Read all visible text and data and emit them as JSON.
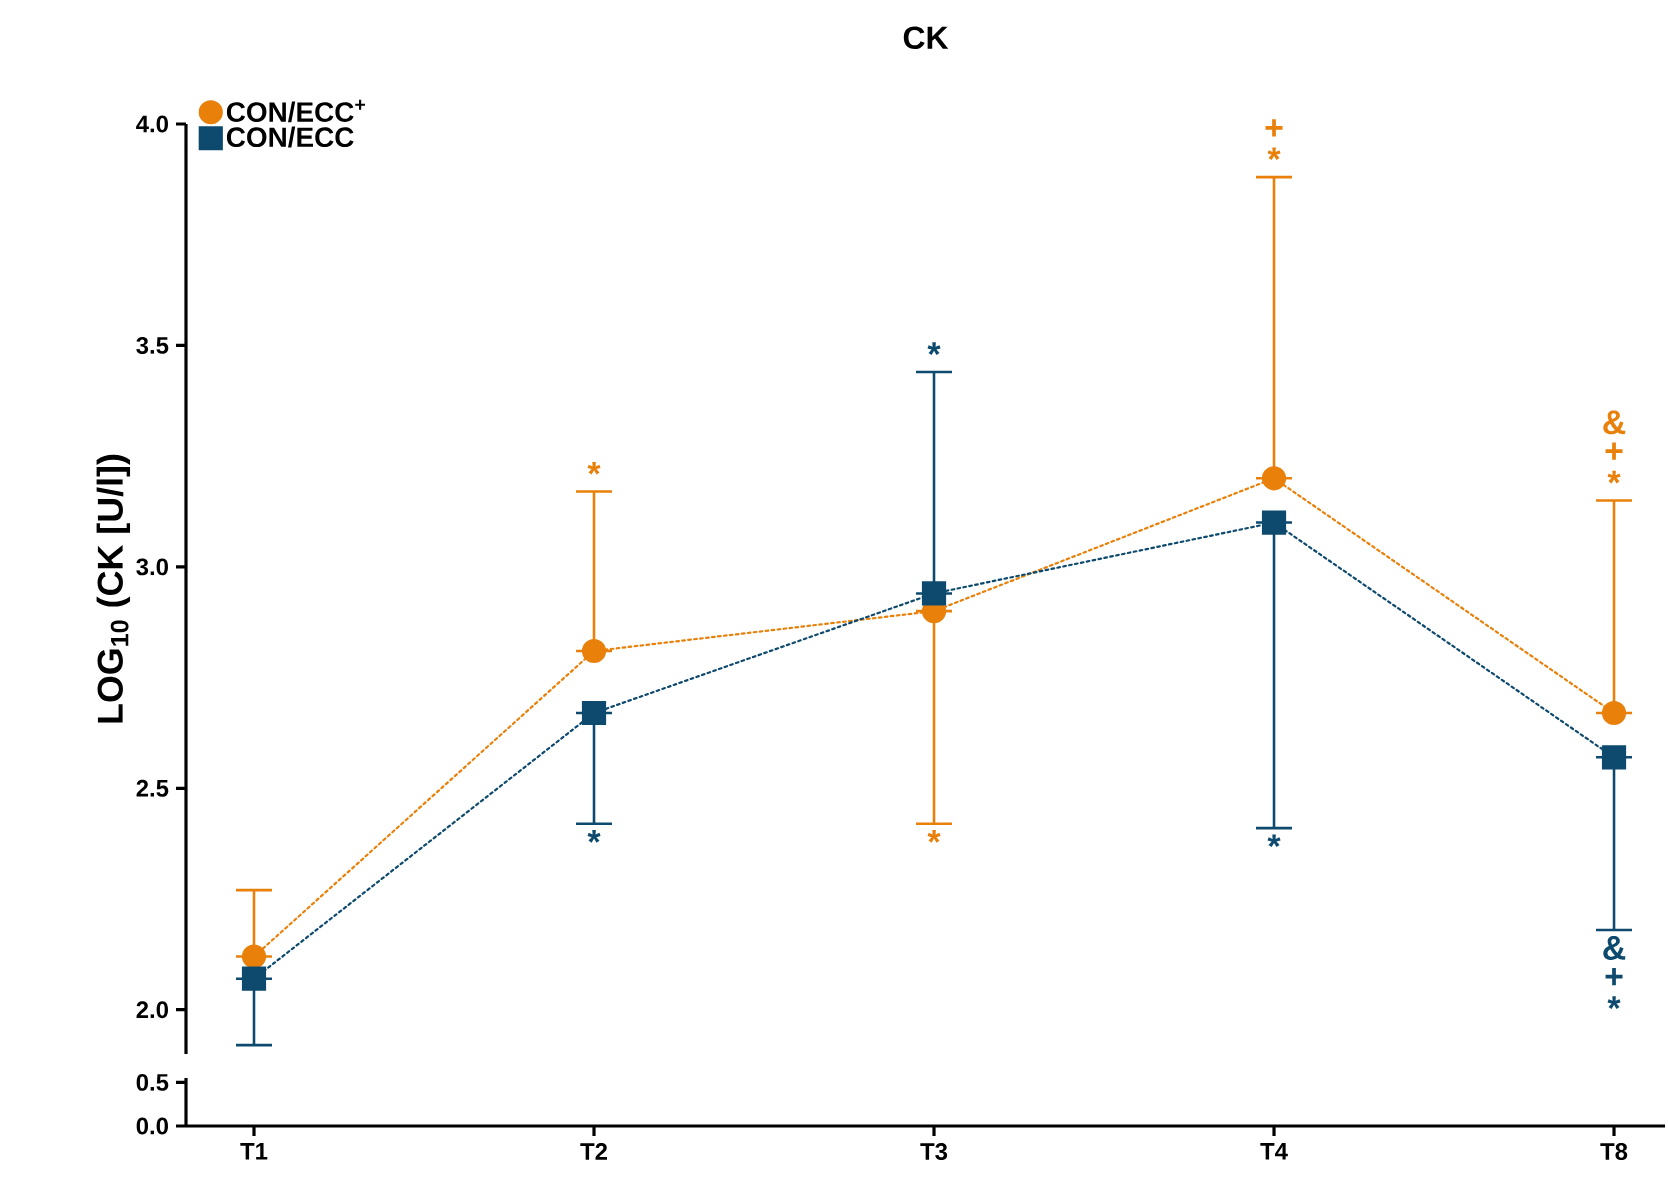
{
  "chart_data": [
    {
      "type": "line",
      "title": "CK",
      "ylabel": "LOG$_{10}$ (CK [U/l])",
      "categories": [
        "T1",
        "T2",
        "T3",
        "T4",
        "T8"
      ],
      "series": [
        {
          "name": "CON/ECC$^{+}$",
          "color": "#e8800a",
          "marker": "circle",
          "values": [
            2.12,
            2.81,
            2.9,
            3.2,
            2.67
          ],
          "errors": [
            [
              2.12,
              2.27
            ],
            [
              2.81,
              3.17
            ],
            [
              2.42,
              2.9
            ],
            [
              3.2,
              3.88
            ],
            [
              2.67,
              3.15
            ]
          ]
        },
        {
          "name": "CON/ECC",
          "color": "#0d4a6e",
          "marker": "square",
          "values": [
            2.07,
            2.67,
            2.94,
            3.1,
            2.57
          ],
          "errors": [
            [
              1.92,
              2.07
            ],
            [
              2.42,
              2.67
            ],
            [
              2.94,
              3.44
            ],
            [
              2.41,
              3.1
            ],
            [
              2.18,
              2.57
            ]
          ]
        }
      ],
      "line_style": "dotted",
      "ylim": [
        1.9,
        4.0
      ],
      "yticks": [
        {
          "value": 2.0,
          "label": "2.0"
        },
        {
          "value": 2.5,
          "label": "2.5"
        },
        {
          "value": 3.0,
          "label": "3.0"
        },
        {
          "value": 3.5,
          "label": "3.5"
        },
        {
          "value": 4.0,
          "label": "4.0"
        }
      ],
      "tick_labels": "y",
      "legend": "top left",
      "annotations": [
        {
          "text": "*",
          "x": "T2",
          "y": 3.17
        },
        {
          "text": "*",
          "x": "T3",
          "y": 2.42
        },
        {
          "text": "*",
          "x": "T4",
          "y": 3.88
        },
        {
          "text": "+",
          "x": "T4",
          "y": 3.88
        },
        {
          "text": "*",
          "x": "T8",
          "y": 3.15
        },
        {
          "text": "+",
          "x": "T8",
          "y": 3.15
        },
        {
          "text": "&",
          "x": "T8",
          "y": 3.15
        },
        {
          "text": "*",
          "x": "T2",
          "y": 2.42
        },
        {
          "text": "*",
          "x": "T3",
          "y": 3.44
        },
        {
          "text": "*",
          "x": "T4",
          "y": 2.41
        },
        {
          "text": "&",
          "x": "T8",
          "y": 2.18
        },
        {
          "text": "+",
          "x": "T8",
          "y": 2.18
        },
        {
          "text": "*",
          "x": "T8",
          "y": 2.18
        }
      ]
    },
    {
      "type": "line",
      "categories": [
        "T1",
        "T2",
        "T3",
        "T4",
        "T8"
      ],
      "ylim": [
        0,
        0.55
      ],
      "yticks": [
        {
          "value": 0,
          "label": "0.0"
        },
        {
          "value": 0.5,
          "label": "0.5"
        }
      ]
    }
  ]
}
